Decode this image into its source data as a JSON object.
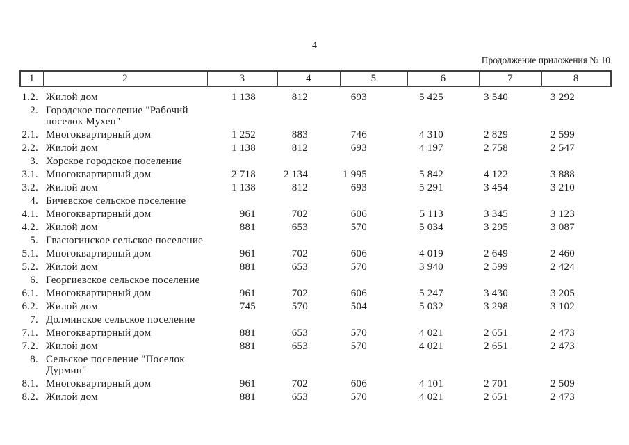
{
  "page": {
    "number": "4",
    "caption": "Продолжение приложения № 10"
  },
  "colors": {
    "table_border": "#3f3f3f",
    "text": "#1b1b1b",
    "background": "#ffffff"
  },
  "table": {
    "header": [
      "1",
      "2",
      "3",
      "4",
      "5",
      "6",
      "7",
      "8"
    ],
    "rows": [
      {
        "no": "1.2.",
        "name": "Жилой дом",
        "values": [
          "1 138",
          "812",
          "693",
          "5 425",
          "3 540",
          "3 292"
        ]
      },
      {
        "no": "2.",
        "name": "Городское поселение \"Рабочий поселок Мухен\"",
        "values": [
          "",
          "",
          "",
          "",
          "",
          ""
        ]
      },
      {
        "no": "2.1.",
        "name": "Многоквартирный дом",
        "values": [
          "1 252",
          "883",
          "746",
          "4 310",
          "2 829",
          "2 599"
        ]
      },
      {
        "no": "2.2.",
        "name": "Жилой дом",
        "values": [
          "1 138",
          "812",
          "693",
          "4 197",
          "2 758",
          "2 547"
        ]
      },
      {
        "no": "3.",
        "name": "Хорское городское поселение",
        "values": [
          "",
          "",
          "",
          "",
          "",
          ""
        ]
      },
      {
        "no": "3.1.",
        "name": "Многоквартирный дом",
        "values": [
          "2 718",
          "2 134",
          "1 995",
          "5 842",
          "4 122",
          "3 888"
        ]
      },
      {
        "no": "3.2.",
        "name": "Жилой дом",
        "values": [
          "1 138",
          "812",
          "693",
          "5 291",
          "3 454",
          "3 210"
        ]
      },
      {
        "no": "4.",
        "name": "Бичевское сельское поселение",
        "values": [
          "",
          "",
          "",
          "",
          "",
          ""
        ]
      },
      {
        "no": "4.1.",
        "name": "Многоквартирный дом",
        "values": [
          "961",
          "702",
          "606",
          "5 113",
          "3 345",
          "3 123"
        ]
      },
      {
        "no": "4.2.",
        "name": "Жилой дом",
        "values": [
          "881",
          "653",
          "570",
          "5 034",
          "3 295",
          "3 087"
        ]
      },
      {
        "no": "5.",
        "name": "Гвасюгинское сельское поселение",
        "values": [
          "",
          "",
          "",
          "",
          "",
          ""
        ]
      },
      {
        "no": "5.1.",
        "name": "Многоквартирный дом",
        "values": [
          "961",
          "702",
          "606",
          "4 019",
          "2 649",
          "2 460"
        ]
      },
      {
        "no": "5.2.",
        "name": "Жилой дом",
        "values": [
          "881",
          "653",
          "570",
          "3 940",
          "2 599",
          "2 424"
        ]
      },
      {
        "no": "6.",
        "name": "Георгиевское сельское поселение",
        "values": [
          "",
          "",
          "",
          "",
          "",
          ""
        ]
      },
      {
        "no": "6.1.",
        "name": "Многоквартирный дом",
        "values": [
          "961",
          "702",
          "606",
          "5 247",
          "3 430",
          "3 205"
        ]
      },
      {
        "no": "6.2.",
        "name": "Жилой дом",
        "values": [
          "745",
          "570",
          "504",
          "5 032",
          "3 298",
          "3 102"
        ]
      },
      {
        "no": "7.",
        "name": "Долминское сельское поселение",
        "values": [
          "",
          "",
          "",
          "",
          "",
          ""
        ]
      },
      {
        "no": "7.1.",
        "name": "Многоквартирный дом",
        "values": [
          "881",
          "653",
          "570",
          "4 021",
          "2 651",
          "2 473"
        ]
      },
      {
        "no": "7.2.",
        "name": "Жилой дом",
        "values": [
          "881",
          "653",
          "570",
          "4 021",
          "2 651",
          "2 473"
        ]
      },
      {
        "no": "8.",
        "name": "Сельское поселение \"Поселок Дурмин\"",
        "values": [
          "",
          "",
          "",
          "",
          "",
          ""
        ]
      },
      {
        "no": "8.1.",
        "name": "Многоквартирный дом",
        "values": [
          "961",
          "702",
          "606",
          "4 101",
          "2 701",
          "2 509"
        ]
      },
      {
        "no": "8.2.",
        "name": "Жилой дом",
        "values": [
          "881",
          "653",
          "570",
          "4 021",
          "2 651",
          "2 473"
        ]
      }
    ]
  }
}
